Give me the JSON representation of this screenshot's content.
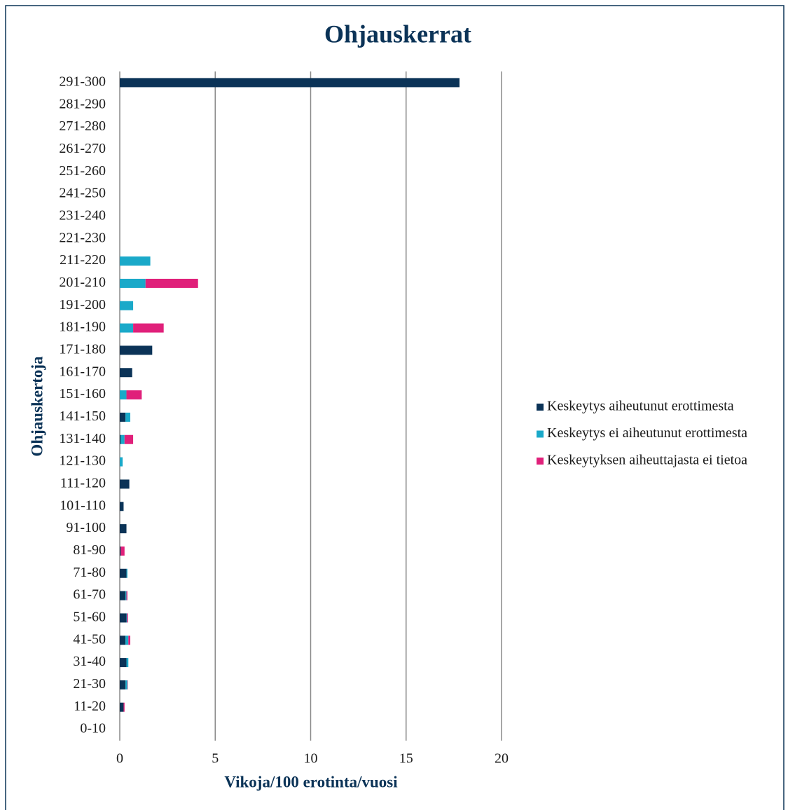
{
  "chart_data": {
    "type": "stacked-hbar",
    "title": "Ohjauskerrat",
    "x_label": "Vikoja/100 erotinta/vuosi",
    "y_label": "Ohjauskertoja",
    "categories": [
      "0-10",
      "11-20",
      "21-30",
      "31-40",
      "41-50",
      "51-60",
      "61-70",
      "71-80",
      "81-90",
      "91-100",
      "101-110",
      "111-120",
      "121-130",
      "131-140",
      "141-150",
      "151-160",
      "161-170",
      "171-180",
      "181-190",
      "191-200",
      "201-210",
      "211-220",
      "221-230",
      "231-240",
      "241-250",
      "251-260",
      "261-270",
      "271-280",
      "281-290",
      "291-300"
    ],
    "series": [
      {
        "name": "Keskeytys aiheutunut erottimesta",
        "color": "#0b3357",
        "values": [
          0,
          0.2,
          0.3,
          0.35,
          0.3,
          0.35,
          0.3,
          0.35,
          0.05,
          0.35,
          0.2,
          0.5,
          0,
          0.05,
          0.3,
          0,
          0.65,
          1.7,
          0,
          0,
          0,
          0,
          0,
          0,
          0,
          0,
          0,
          0,
          0,
          17.8
        ]
      },
      {
        "name": "Keskeytys ei aiheutunut erottimesta",
        "color": "#1aa9c9",
        "values": [
          0,
          0,
          0.1,
          0.1,
          0.15,
          0.03,
          0.05,
          0.05,
          0,
          0,
          0,
          0,
          0.15,
          0.2,
          0.25,
          0.35,
          0,
          0,
          0.7,
          0.7,
          1.35,
          1.6,
          0,
          0,
          0,
          0,
          0,
          0,
          0,
          0
        ]
      },
      {
        "name": "Keskeytyksen aiheuttajasta ei tietoa",
        "color": "#e0207a",
        "values": [
          0,
          0.05,
          0.02,
          0,
          0.1,
          0.05,
          0.05,
          0,
          0.2,
          0,
          0,
          0,
          0,
          0.45,
          0,
          0.8,
          0,
          0,
          1.6,
          0,
          2.75,
          0,
          0,
          0,
          0,
          0,
          0,
          0,
          0,
          0
        ]
      }
    ],
    "xlim": [
      0,
      20
    ],
    "xticks": [
      0,
      5,
      10,
      15,
      20
    ],
    "grid": true,
    "legend": "right"
  }
}
